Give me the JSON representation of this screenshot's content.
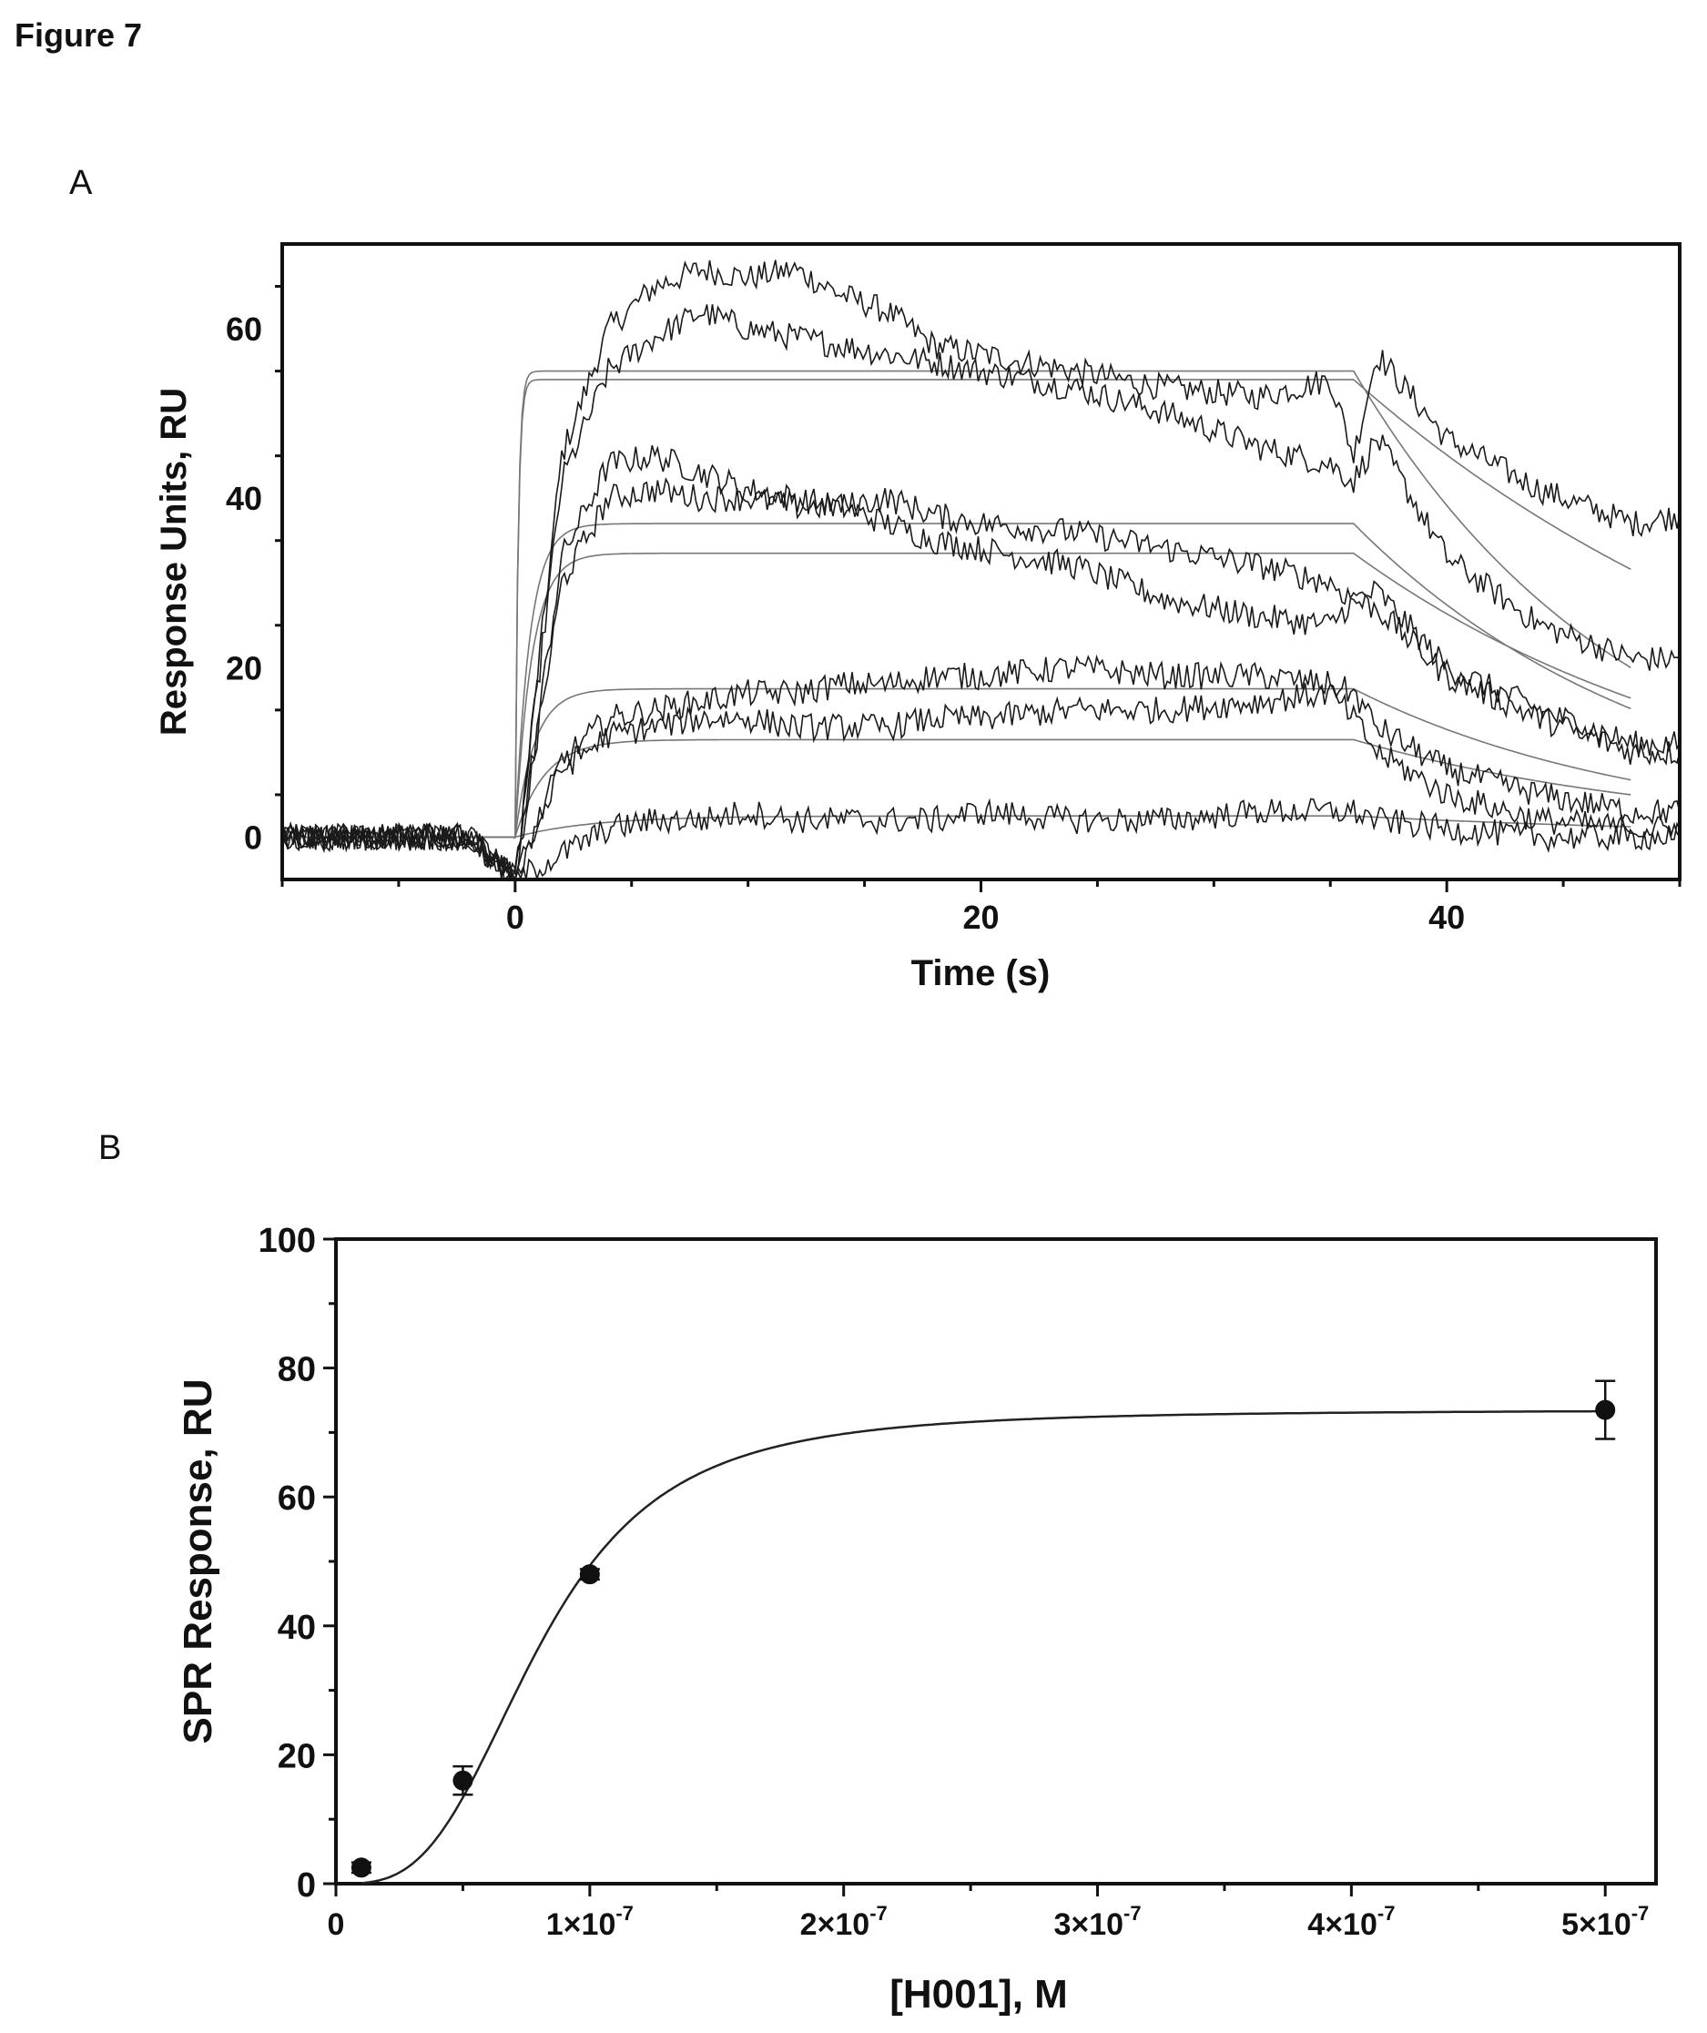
{
  "figure_title": "Figure 7",
  "chart_data": [
    {
      "panel": "A",
      "type": "line",
      "title": "",
      "xlabel": "Time (s)",
      "ylabel": "Response Units, RU",
      "xlim": [
        -10,
        50
      ],
      "ylim": [
        -5,
        70
      ],
      "xticks": [
        0,
        20,
        40
      ],
      "xtick_labels": [
        "0",
        "20",
        "40"
      ],
      "yticks": [
        0,
        20,
        40,
        60
      ],
      "ytick_labels": [
        "0",
        "20",
        "40",
        "60"
      ],
      "grid": false,
      "legend": "none",
      "injection_start": 0,
      "injection_end": 36,
      "series": [
        {
          "kind": "measured",
          "values": [
            [
              -10,
              0
            ],
            [
              -2,
              0
            ],
            [
              0,
              -5
            ],
            [
              2,
              45
            ],
            [
              4,
              60
            ],
            [
              6,
              65
            ],
            [
              8,
              67
            ],
            [
              10,
              66
            ],
            [
              12,
              67
            ],
            [
              14,
              64
            ],
            [
              16,
              62
            ],
            [
              18,
              58
            ],
            [
              20,
              57
            ],
            [
              24,
              55
            ],
            [
              28,
              53
            ],
            [
              32,
              52
            ],
            [
              35,
              54
            ],
            [
              36,
              45
            ],
            [
              37,
              57
            ],
            [
              40,
              47
            ],
            [
              44,
              41
            ],
            [
              48,
              37
            ],
            [
              50,
              38
            ]
          ]
        },
        {
          "kind": "measured",
          "values": [
            [
              -10,
              0
            ],
            [
              -2,
              0
            ],
            [
              0,
              -5
            ],
            [
              2,
              42
            ],
            [
              4,
              55
            ],
            [
              6,
              59
            ],
            [
              8,
              62
            ],
            [
              10,
              60
            ],
            [
              12,
              59
            ],
            [
              14,
              58
            ],
            [
              16,
              57
            ],
            [
              18,
              56
            ],
            [
              20,
              55
            ],
            [
              24,
              53
            ],
            [
              28,
              50
            ],
            [
              32,
              46
            ],
            [
              35,
              44
            ],
            [
              36,
              42
            ],
            [
              37,
              47
            ],
            [
              40,
              33
            ],
            [
              44,
              25
            ],
            [
              48,
              21
            ],
            [
              50,
              21
            ]
          ]
        },
        {
          "kind": "measured",
          "values": [
            [
              -10,
              0
            ],
            [
              -2,
              0
            ],
            [
              0,
              -5
            ],
            [
              2,
              33
            ],
            [
              4,
              44
            ],
            [
              6,
              45
            ],
            [
              8,
              43
            ],
            [
              10,
              41
            ],
            [
              12,
              40
            ],
            [
              14,
              39
            ],
            [
              16,
              37
            ],
            [
              18,
              35
            ],
            [
              20,
              34
            ],
            [
              24,
              32
            ],
            [
              28,
              28
            ],
            [
              32,
              26
            ],
            [
              35,
              25
            ],
            [
              36,
              28
            ],
            [
              37,
              29
            ],
            [
              40,
              20
            ],
            [
              44,
              15
            ],
            [
              48,
              11
            ],
            [
              50,
              11
            ]
          ]
        },
        {
          "kind": "measured",
          "values": [
            [
              -10,
              0
            ],
            [
              -2,
              0
            ],
            [
              0,
              -5
            ],
            [
              2,
              30
            ],
            [
              4,
              40
            ],
            [
              6,
              41
            ],
            [
              8,
              40
            ],
            [
              10,
              40
            ],
            [
              12,
              39
            ],
            [
              14,
              39
            ],
            [
              16,
              40
            ],
            [
              18,
              38
            ],
            [
              20,
              37
            ],
            [
              24,
              36
            ],
            [
              28,
              34
            ],
            [
              32,
              32
            ],
            [
              35,
              30
            ],
            [
              36,
              28
            ],
            [
              37,
              27
            ],
            [
              40,
              19
            ],
            [
              44,
              14
            ],
            [
              48,
              10
            ],
            [
              50,
              10
            ]
          ]
        },
        {
          "kind": "measured",
          "values": [
            [
              -10,
              0
            ],
            [
              -2,
              0
            ],
            [
              0,
              -5
            ],
            [
              2,
              9
            ],
            [
              4,
              14
            ],
            [
              6,
              15
            ],
            [
              8,
              16
            ],
            [
              10,
              17
            ],
            [
              12,
              17
            ],
            [
              14,
              18
            ],
            [
              16,
              18
            ],
            [
              18,
              19
            ],
            [
              20,
              19
            ],
            [
              24,
              20
            ],
            [
              28,
              19
            ],
            [
              32,
              19
            ],
            [
              35,
              18
            ],
            [
              36,
              17
            ],
            [
              37,
              13
            ],
            [
              40,
              8
            ],
            [
              44,
              5
            ],
            [
              48,
              3
            ],
            [
              50,
              3
            ]
          ]
        },
        {
          "kind": "measured",
          "values": [
            [
              -10,
              0
            ],
            [
              -2,
              0
            ],
            [
              0,
              -5
            ],
            [
              2,
              8
            ],
            [
              4,
              12
            ],
            [
              6,
              13
            ],
            [
              8,
              14
            ],
            [
              10,
              14
            ],
            [
              12,
              13
            ],
            [
              14,
              13
            ],
            [
              16,
              13
            ],
            [
              18,
              14
            ],
            [
              20,
              14
            ],
            [
              24,
              15
            ],
            [
              28,
              15
            ],
            [
              32,
              16
            ],
            [
              35,
              17
            ],
            [
              36,
              14
            ],
            [
              37,
              10
            ],
            [
              40,
              5
            ],
            [
              44,
              2
            ],
            [
              48,
              1
            ],
            [
              50,
              1
            ]
          ]
        },
        {
          "kind": "measured",
          "values": [
            [
              -10,
              0
            ],
            [
              -2,
              0
            ],
            [
              0,
              -5
            ],
            [
              2,
              -2
            ],
            [
              4,
              1
            ],
            [
              6,
              2
            ],
            [
              8,
              2
            ],
            [
              10,
              3
            ],
            [
              12,
              2
            ],
            [
              14,
              2
            ],
            [
              16,
              2
            ],
            [
              18,
              2
            ],
            [
              20,
              3
            ],
            [
              24,
              2
            ],
            [
              28,
              2
            ],
            [
              32,
              3
            ],
            [
              35,
              3
            ],
            [
              36,
              3
            ],
            [
              37,
              2
            ],
            [
              40,
              1
            ],
            [
              44,
              0
            ],
            [
              48,
              0
            ],
            [
              50,
              0
            ]
          ]
        },
        {
          "kind": "fit",
          "plateau": 55,
          "ka": 8.0,
          "kd": 0.085
        },
        {
          "kind": "fit",
          "plateau": 54,
          "ka": 8.0,
          "kd": 0.045
        },
        {
          "kind": "fit",
          "plateau": 37,
          "ka": 1.6,
          "kd": 0.075
        },
        {
          "kind": "fit",
          "plateau": 33.5,
          "ka": 1.4,
          "kd": 0.06
        },
        {
          "kind": "fit",
          "plateau": 17.5,
          "ka": 1.2,
          "kd": 0.08
        },
        {
          "kind": "fit",
          "plateau": 11.5,
          "ka": 0.8,
          "kd": 0.07
        },
        {
          "kind": "fit",
          "plateau": 2.5,
          "ka": 0.3,
          "kd": 0.06
        }
      ]
    },
    {
      "panel": "B",
      "type": "scatter",
      "title": "",
      "xlabel": "[H001], M",
      "ylabel": "SPR Response, RU",
      "xlim": [
        0,
        5.2e-07
      ],
      "ylim": [
        0,
        100
      ],
      "xticks": [
        0,
        1e-07,
        2e-07,
        3e-07,
        4e-07,
        5e-07
      ],
      "xtick_labels": [
        "0",
        "1×10",
        "2×10",
        "3×10",
        "4×10",
        "5×10"
      ],
      "xtick_exponent": "-7",
      "yticks": [
        0,
        20,
        40,
        60,
        80,
        100
      ],
      "ytick_labels": [
        "0",
        "20",
        "40",
        "60",
        "80",
        "100"
      ],
      "grid": false,
      "legend": "none",
      "points": [
        {
          "x": 1e-08,
          "y": 2.5,
          "err": 0.8
        },
        {
          "x": 5e-08,
          "y": 16,
          "err": 2.2
        },
        {
          "x": 1e-07,
          "y": 48,
          "err": 0.8
        },
        {
          "x": 5e-07,
          "y": 73.5,
          "err": 4.5
        }
      ],
      "fit_curve": {
        "model": "hill",
        "bmax": 73.5,
        "ec50": 8e-08,
        "hill_n": 3.2
      }
    }
  ]
}
